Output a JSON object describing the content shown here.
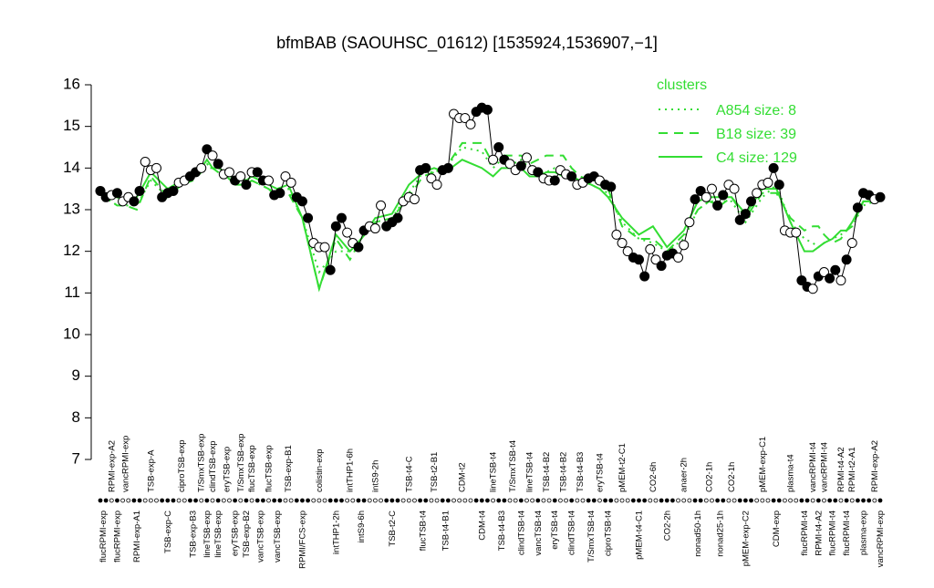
{
  "chart_data": {
    "type": "line",
    "title": "bfmBAB (SAOUHSC_01612) [1535924,1536907,−1]",
    "ylim": [
      7,
      16
    ],
    "yticks": [
      7,
      8,
      9,
      10,
      11,
      12,
      13,
      14,
      15,
      16
    ],
    "line_color": "#000000",
    "legend_title": "clusters",
    "legend_position": "top-right",
    "legend_color": "#33dd33",
    "groups": [
      {
        "label": "flucRPMI-exp",
        "values": [
          13.45,
          13.3
        ]
      },
      {
        "label": "RPMI-exp-A2",
        "values": [
          13.35
        ]
      },
      {
        "label": "flucRPMI-exp",
        "values": [
          13.4
        ]
      },
      {
        "label": "vancRPMI-exp",
        "values": [
          13.2,
          13.3
        ]
      },
      {
        "label": "RPMI-exp-A1",
        "values": [
          13.2,
          13.45
        ]
      },
      {
        "label": "TSB-exp-A",
        "values": [
          14.15,
          13.95,
          14.0
        ]
      },
      {
        "label": "TSB-exp-C",
        "values": [
          13.3,
          13.4,
          13.45
        ]
      },
      {
        "label": "ciproTSB-exp",
        "values": [
          13.65,
          13.7
        ]
      },
      {
        "label": "TSB-exp-B3",
        "values": [
          13.8,
          13.9
        ]
      },
      {
        "label": "T/SmxTSB-exp",
        "values": [
          14.0
        ]
      },
      {
        "label": "lineTSB-exp",
        "values": [
          14.45
        ]
      },
      {
        "label": "clindTSB-exp",
        "values": [
          14.3
        ]
      },
      {
        "label": "lineTSB-exp",
        "values": [
          14.1
        ]
      },
      {
        "label": "eryTSB-exp",
        "values": [
          13.85,
          13.9
        ]
      },
      {
        "label": "eryTSB-exp",
        "values": [
          13.7
        ]
      },
      {
        "label": "T/SmxTSB-exp",
        "values": [
          13.8
        ]
      },
      {
        "label": "TSB-exp-B2",
        "values": [
          13.6
        ]
      },
      {
        "label": "flucTSB-exp",
        "values": [
          13.9
        ]
      },
      {
        "label": "vancTSB-exp",
        "values": [
          13.9,
          13.7
        ]
      },
      {
        "label": "flucTSB-exp",
        "values": [
          13.7
        ]
      },
      {
        "label": "vancTSB-exp",
        "values": [
          13.35,
          13.4
        ]
      },
      {
        "label": "TSB-exp-B1",
        "values": [
          13.8,
          13.65
        ]
      },
      {
        "label": "RPMI/FCS-exp",
        "values": [
          13.3,
          13.2,
          12.8
        ]
      },
      {
        "label": "colistin-exp",
        "values": [
          12.2,
          12.1,
          12.1
        ]
      },
      {
        "label": "intTHP1-2h",
        "values": [
          11.55,
          12.6,
          12.8
        ]
      },
      {
        "label": "intTHP1-6h",
        "values": [
          12.45,
          12.2
        ]
      },
      {
        "label": "intS9-6h",
        "values": [
          12.1,
          12.5
        ]
      },
      {
        "label": "intS9-2h",
        "values": [
          12.6,
          12.55,
          13.1
        ]
      },
      {
        "label": "TSB-t2-C",
        "values": [
          12.6,
          12.7,
          12.8
        ]
      },
      {
        "label": "TSB-t4-C",
        "values": [
          13.2,
          13.3,
          13.25
        ]
      },
      {
        "label": "flucTSB-t4",
        "values": [
          13.95,
          14.0
        ]
      },
      {
        "label": "TSB-t2-B1",
        "values": [
          13.75,
          13.6
        ]
      },
      {
        "label": "TSB-t4-B1",
        "values": [
          13.95,
          14.0
        ]
      },
      {
        "label": "CDM-t2",
        "values": [
          15.3,
          15.2,
          15.2,
          15.05
        ]
      },
      {
        "label": "CDM-t4",
        "values": [
          15.35,
          15.45,
          15.4
        ]
      },
      {
        "label": "lineTSB-t4",
        "values": [
          14.2
        ]
      },
      {
        "label": "TSB-t4-B3",
        "values": [
          14.5,
          14.2
        ]
      },
      {
        "label": "T/SmxTSB-t4",
        "values": [
          14.1,
          13.95
        ]
      },
      {
        "label": "clindTSB-t4",
        "values": [
          14.05
        ]
      },
      {
        "label": "lineTSB-t4",
        "values": [
          14.25,
          13.95
        ]
      },
      {
        "label": "vancTSB-t4",
        "values": [
          13.9
        ]
      },
      {
        "label": "TSB-t4-B2",
        "values": [
          13.75,
          13.7
        ]
      },
      {
        "label": "eryTSB-t4",
        "values": [
          13.7
        ]
      },
      {
        "label": "TSB-t4-B2",
        "values": [
          13.95,
          13.85
        ]
      },
      {
        "label": "clindTSB-t4",
        "values": [
          13.8
        ]
      },
      {
        "label": "TSB-t4-B3",
        "values": [
          13.6,
          13.65
        ]
      },
      {
        "label": "T/SmxTSB-t4",
        "values": [
          13.75,
          13.8
        ]
      },
      {
        "label": "eryTSB-t4",
        "values": [
          13.7
        ]
      },
      {
        "label": "ciproTSB-t4",
        "values": [
          13.6,
          13.55
        ]
      },
      {
        "label": "pMEM-t2-C1",
        "values": [
          12.4,
          12.2,
          12.0
        ]
      },
      {
        "label": "pMEM-t4-C1",
        "values": [
          11.85,
          11.8,
          11.4
        ]
      },
      {
        "label": "CO2-6h",
        "values": [
          12.05,
          11.8
        ]
      },
      {
        "label": "CO2-2h",
        "values": [
          11.65,
          11.9,
          11.95
        ]
      },
      {
        "label": "anaer-2h",
        "values": [
          11.85,
          12.15,
          12.7
        ]
      },
      {
        "label": "nonad50-1h",
        "values": [
          13.25,
          13.45
        ]
      },
      {
        "label": "CO2-1h",
        "values": [
          13.3,
          13.5
        ]
      },
      {
        "label": "nonad25-1h",
        "values": [
          13.1,
          13.35
        ]
      },
      {
        "label": "CO2-1h",
        "values": [
          13.6,
          13.5
        ]
      },
      {
        "label": "pMEM-exp-C2",
        "values": [
          12.75,
          12.9,
          13.2
        ]
      },
      {
        "label": "pMEM-exp-C1",
        "values": [
          13.4,
          13.6,
          13.65
        ]
      },
      {
        "label": "CDM-exp",
        "values": [
          14.0,
          13.6
        ]
      },
      {
        "label": "plasma-t4",
        "values": [
          12.5,
          12.45,
          12.45
        ]
      },
      {
        "label": "flucRPMI-t4",
        "values": [
          11.3,
          11.15
        ]
      },
      {
        "label": "vancRPMI-t4",
        "values": [
          11.1
        ]
      },
      {
        "label": "RPMI-t4-A2",
        "values": [
          11.4
        ]
      },
      {
        "label": "vancRPMI-t4",
        "values": [
          11.5
        ]
      },
      {
        "label": "flucRPMI-t4",
        "values": [
          11.35,
          11.55
        ]
      },
      {
        "label": "RPMI-t4-A2",
        "values": [
          11.3
        ]
      },
      {
        "label": "flucRPMI-t4",
        "values": [
          11.8
        ]
      },
      {
        "label": "RPMI-t2-A1",
        "values": [
          12.2
        ]
      },
      {
        "label": "plasma-exp",
        "values": [
          13.05,
          13.4,
          13.35
        ]
      },
      {
        "label": "RPMI-exp-A2",
        "values": [
          13.25
        ]
      },
      {
        "label": "vancRPMI-exp",
        "values": [
          13.3
        ]
      }
    ],
    "series": [
      {
        "name": "A854 size: 8",
        "color": "#33dd33",
        "style": "dotted",
        "values": [
          13.3,
          13.2,
          13.1,
          13.1,
          13.1,
          13.7,
          13.3,
          13.6,
          13.8,
          13.9,
          14.1,
          14.0,
          13.9,
          13.8,
          13.6,
          13.7,
          13.6,
          13.7,
          13.6,
          13.5,
          13.4,
          13.5,
          12.8,
          11.5,
          12.0,
          12.0,
          12.3,
          12.7,
          12.8,
          13.4,
          13.9,
          13.9,
          14.0,
          14.5,
          14.4,
          14.0,
          14.2,
          14.1,
          14.2,
          14.0,
          13.9,
          13.9,
          14.0,
          13.9,
          13.8,
          13.7,
          13.6,
          13.5,
          13.4,
          12.7,
          12.3,
          12.2,
          12.0,
          12.3,
          13.0,
          13.2,
          13.2,
          13.2,
          12.7,
          13.3,
          13.6,
          12.7,
          12.3,
          12.2,
          12.1,
          12.2,
          12.3,
          12.4,
          12.5,
          12.6,
          13.1,
          13.2,
          13.2
        ]
      },
      {
        "name": "B18 size: 39",
        "color": "#33dd33",
        "style": "dashed",
        "values": [
          13.4,
          13.2,
          13.1,
          13.1,
          13.0,
          13.8,
          13.3,
          13.6,
          13.7,
          13.9,
          14.0,
          14.0,
          13.9,
          13.8,
          13.6,
          13.6,
          13.6,
          13.7,
          13.6,
          13.5,
          13.3,
          13.4,
          12.8,
          11.1,
          12.3,
          11.8,
          12.3,
          12.7,
          12.8,
          13.3,
          13.8,
          13.9,
          14.0,
          14.6,
          14.6,
          14.1,
          14.3,
          14.3,
          14.3,
          14.1,
          14.2,
          14.3,
          14.3,
          14.3,
          14.0,
          13.8,
          13.7,
          13.6,
          13.5,
          12.6,
          12.3,
          12.3,
          12.0,
          12.4,
          13.0,
          13.2,
          13.1,
          13.3,
          12.8,
          13.4,
          13.4,
          12.8,
          12.5,
          12.6,
          12.6,
          12.4,
          12.2,
          12.3,
          12.5,
          12.6,
          13.2,
          13.2,
          13.2
        ]
      },
      {
        "name": "C4 size: 129",
        "color": "#33dd33",
        "style": "solid",
        "values": [
          13.4,
          13.3,
          13.3,
          13.2,
          13.3,
          13.9,
          13.5,
          13.7,
          13.8,
          14.0,
          14.2,
          14.0,
          14.0,
          13.9,
          13.7,
          13.8,
          13.7,
          13.8,
          13.7,
          13.6,
          13.5,
          13.6,
          12.8,
          11.1,
          12.4,
          12.0,
          12.3,
          12.8,
          12.9,
          13.6,
          13.9,
          14.0,
          13.9,
          14.2,
          14.0,
          13.8,
          14.0,
          14.0,
          14.0,
          13.8,
          13.8,
          13.9,
          13.9,
          13.8,
          13.8,
          13.7,
          13.6,
          13.5,
          13.3,
          12.8,
          12.4,
          12.6,
          12.1,
          12.5,
          13.2,
          13.3,
          13.3,
          13.3,
          12.9,
          13.5,
          13.5,
          12.7,
          12.0,
          12.0,
          12.1,
          12.2,
          12.3,
          12.5,
          12.5,
          12.7,
          13.2,
          13.2,
          13.3
        ]
      }
    ]
  }
}
